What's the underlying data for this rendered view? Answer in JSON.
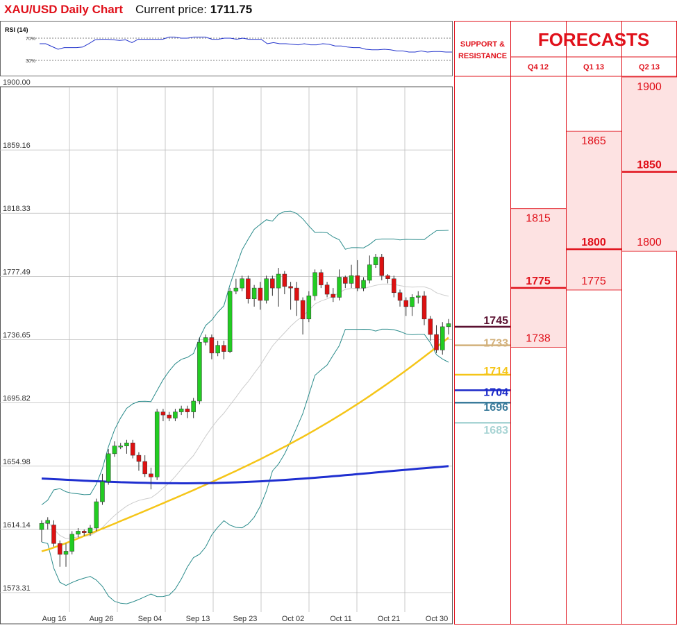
{
  "header": {
    "title": "XAU/USD Daily Chart",
    "price_label": "Current price:",
    "price_value": "1711.75"
  },
  "rsi": {
    "label": "RSI (14)",
    "level_high": "70%",
    "level_low": "30%",
    "values": [
      60,
      60,
      55,
      50,
      53,
      53,
      53,
      54,
      60,
      67,
      68,
      68,
      67,
      66,
      67,
      62,
      68,
      68,
      68,
      68,
      68,
      72,
      72,
      70,
      70,
      72,
      72,
      72,
      68,
      68,
      70,
      70,
      68,
      70,
      68,
      68,
      68,
      60,
      62,
      60,
      60,
      59,
      58,
      60,
      58,
      58,
      60,
      59,
      56,
      56,
      54,
      53,
      53,
      50,
      49,
      49,
      50,
      49,
      47,
      47,
      45,
      45,
      47,
      45,
      46,
      46,
      45,
      45
    ]
  },
  "chart_data": {
    "type": "candlestick",
    "title": "XAU/USD Daily Chart",
    "ylim": [
      1573.31,
      1900.0
    ],
    "yticks": [
      "1900.00",
      "1859.16",
      "1818.33",
      "1777.49",
      "1736.65",
      "1695.82",
      "1654.98",
      "1614.14",
      "1573.31"
    ],
    "xticks": [
      "Aug 16",
      "Aug 26",
      "Sep 04",
      "Sep 13",
      "Sep 23",
      "Oct 02",
      "Oct 11",
      "Oct 21",
      "Oct 30"
    ],
    "candles": [
      [
        1614,
        1618,
        1606,
        1620
      ],
      [
        1618,
        1620,
        1614,
        1622
      ],
      [
        1617,
        1605,
        1603,
        1620
      ],
      [
        1605,
        1598,
        1590,
        1607
      ],
      [
        1598,
        1600,
        1590,
        1605
      ],
      [
        1600,
        1611,
        1598,
        1613
      ],
      [
        1611,
        1613,
        1609,
        1615
      ],
      [
        1613,
        1612,
        1610,
        1614
      ],
      [
        1612,
        1615,
        1610,
        1617
      ],
      [
        1615,
        1632,
        1613,
        1634
      ],
      [
        1632,
        1645,
        1630,
        1650
      ],
      [
        1645,
        1663,
        1643,
        1666
      ],
      [
        1663,
        1668,
        1661,
        1671
      ],
      [
        1668,
        1668,
        1666,
        1670
      ],
      [
        1668,
        1670,
        1663,
        1672
      ],
      [
        1670,
        1662,
        1660,
        1672
      ],
      [
        1662,
        1658,
        1652,
        1664
      ],
      [
        1658,
        1650,
        1648,
        1662
      ],
      [
        1650,
        1648,
        1640,
        1654
      ],
      [
        1648,
        1690,
        1646,
        1692
      ],
      [
        1690,
        1688,
        1684,
        1692
      ],
      [
        1688,
        1686,
        1684,
        1690
      ],
      [
        1686,
        1690,
        1684,
        1692
      ],
      [
        1690,
        1692,
        1688,
        1694
      ],
      [
        1692,
        1690,
        1686,
        1694
      ],
      [
        1690,
        1697,
        1686,
        1699
      ],
      [
        1697,
        1735,
        1695,
        1738
      ],
      [
        1735,
        1738,
        1733,
        1740
      ],
      [
        1738,
        1728,
        1724,
        1740
      ],
      [
        1728,
        1733,
        1726,
        1736
      ],
      [
        1733,
        1729,
        1724,
        1736
      ],
      [
        1729,
        1768,
        1728,
        1770
      ],
      [
        1768,
        1770,
        1766,
        1776
      ],
      [
        1770,
        1776,
        1768,
        1778
      ],
      [
        1776,
        1763,
        1760,
        1778
      ],
      [
        1763,
        1770,
        1758,
        1772
      ],
      [
        1770,
        1762,
        1756,
        1774
      ],
      [
        1762,
        1776,
        1760,
        1778
      ],
      [
        1776,
        1770,
        1765,
        1778
      ],
      [
        1770,
        1779,
        1758,
        1783
      ],
      [
        1779,
        1771,
        1766,
        1781
      ],
      [
        1771,
        1770,
        1756,
        1774
      ],
      [
        1770,
        1762,
        1752,
        1774
      ],
      [
        1762,
        1750,
        1740,
        1764
      ],
      [
        1750,
        1765,
        1748,
        1768
      ],
      [
        1765,
        1780,
        1762,
        1782
      ],
      [
        1780,
        1772,
        1770,
        1782
      ],
      [
        1772,
        1766,
        1764,
        1774
      ],
      [
        1766,
        1764,
        1761,
        1770
      ],
      [
        1764,
        1777,
        1762,
        1782
      ],
      [
        1777,
        1773,
        1770,
        1778
      ],
      [
        1773,
        1778,
        1770,
        1785
      ],
      [
        1778,
        1770,
        1768,
        1788
      ],
      [
        1770,
        1775,
        1768,
        1777
      ],
      [
        1775,
        1785,
        1773,
        1791
      ],
      [
        1785,
        1790,
        1783,
        1792
      ],
      [
        1790,
        1778,
        1775,
        1792
      ],
      [
        1778,
        1776,
        1773,
        1779
      ],
      [
        1776,
        1767,
        1764,
        1778
      ],
      [
        1767,
        1762,
        1758,
        1769
      ],
      [
        1762,
        1758,
        1752,
        1764
      ],
      [
        1758,
        1764,
        1752,
        1766
      ],
      [
        1764,
        1765,
        1760,
        1768
      ],
      [
        1765,
        1750,
        1746,
        1768
      ],
      [
        1750,
        1740,
        1736,
        1752
      ],
      [
        1740,
        1730,
        1728,
        1746
      ],
      [
        1730,
        1745,
        1727,
        1748
      ],
      [
        1745,
        1747,
        1740,
        1750
      ]
    ],
    "candle_note": "open, close, low, high",
    "series": [
      {
        "name": "SMA 50",
        "color": "#f5c518"
      },
      {
        "name": "SMA 200",
        "color": "#1f2fd0"
      },
      {
        "name": "Bollinger",
        "color": "#2a8b8b"
      }
    ]
  },
  "levels": {
    "header_label_1": "SUPPORT &",
    "header_label_2": "RESISTANCE",
    "items": [
      {
        "value": "1745",
        "color": "#5a1030",
        "price": 1745
      },
      {
        "value": "1733",
        "color": "#d2b07a",
        "price": 1733
      },
      {
        "value": "1714",
        "color": "#f5c518",
        "price": 1714
      },
      {
        "value": "1704",
        "color": "#1a28c8",
        "price": 1704
      },
      {
        "value": "1696",
        "color": "#3a7b9b",
        "price": 1696
      },
      {
        "value": "1683",
        "color": "#a8d4d4",
        "price": 1683
      }
    ]
  },
  "forecasts": {
    "title": "FORECASTS",
    "columns": [
      {
        "label": "Q4 12",
        "high": "1815",
        "mid": "1775",
        "low": "1738",
        "p_high": 1815,
        "p_mid": 1775,
        "p_low": 1738
      },
      {
        "label": "Q1 13",
        "high": "1865",
        "mid": "1800",
        "low": "1775",
        "p_high": 1865,
        "p_mid": 1800,
        "p_low": 1775
      },
      {
        "label": "Q2 13",
        "high": "1900",
        "mid": "1850",
        "low": "1800",
        "p_high": 1900,
        "p_mid": 1850,
        "p_low": 1800
      }
    ]
  }
}
